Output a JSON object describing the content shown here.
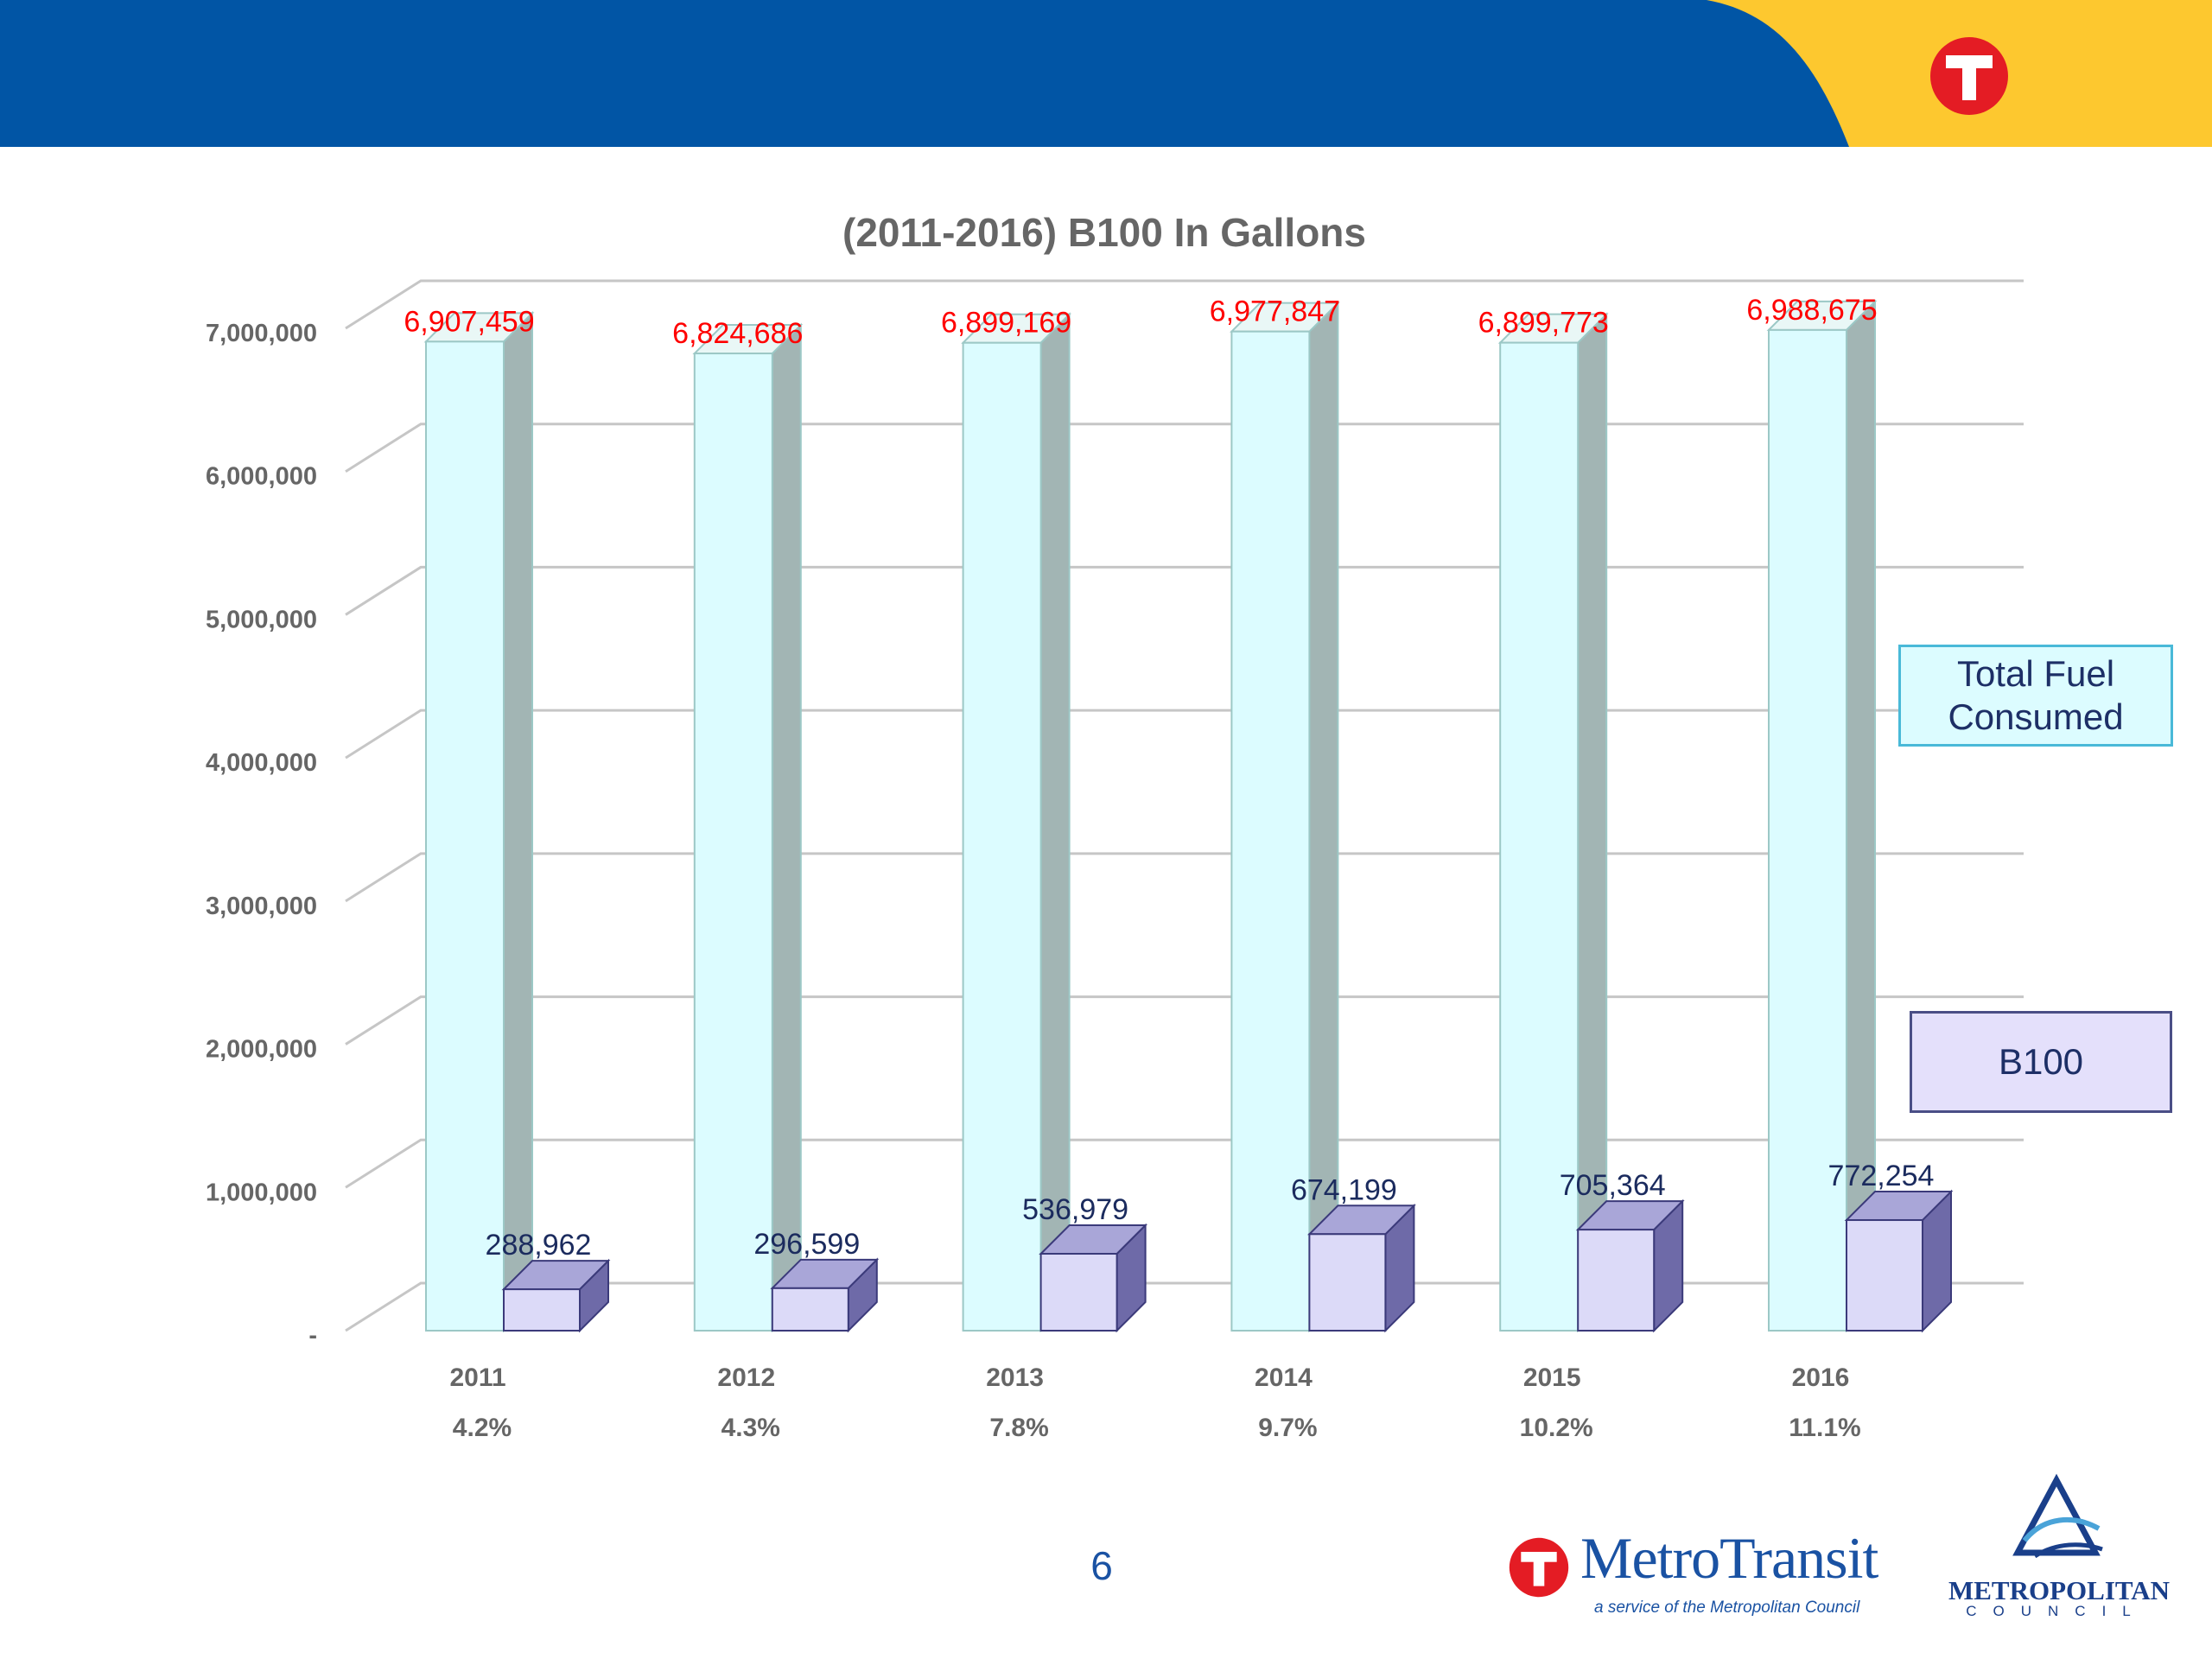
{
  "colors": {
    "header_blue": "#0155a5",
    "header_yellow": "#fdc82f",
    "logo_red": "#e41c24",
    "total_bar": "#dcfcff",
    "total_bar_side": "#a2b5b4",
    "b100_bar": "#dcdaf8",
    "b100_bar_side": "#6e6aa8",
    "b100_bar_edge": "#3b3a7a",
    "total_label": "#ff0000",
    "b100_label": "#1b2b5e",
    "axis_text": "#666666"
  },
  "header": {
    "logo_icon": "metro-transit-t-icon"
  },
  "chart_data": {
    "type": "bar",
    "title": "(2011-2016) B100 In Gallons",
    "categories": [
      "2011",
      "2012",
      "2013",
      "2014",
      "2015",
      "2016"
    ],
    "category_sublabels": [
      "4.2%",
      "4.3%",
      "7.8%",
      "9.7%",
      "10.2%",
      "11.1%"
    ],
    "series": [
      {
        "name": "Total Fuel Consumed",
        "values": [
          6907459,
          6824686,
          6899169,
          6977847,
          6899773,
          6988675
        ],
        "labels": [
          "6,907,459",
          "6,824,686",
          "6,899,169",
          "6,977,847",
          "6,899,773",
          "6,988,675"
        ]
      },
      {
        "name": "B100",
        "values": [
          288962,
          296599,
          536979,
          674199,
          705364,
          772254
        ],
        "labels": [
          "288,962",
          "296,599",
          "536,979",
          "674,199",
          "705,364",
          "772,254"
        ]
      }
    ],
    "ylim": [
      0,
      7000000
    ],
    "yticks": [
      0,
      1000000,
      2000000,
      3000000,
      4000000,
      5000000,
      6000000,
      7000000
    ],
    "ytick_labels": [
      "-",
      "1,000,000",
      "2,000,000",
      "3,000,000",
      "4,000,000",
      "5,000,000",
      "6,000,000",
      "7,000,000"
    ],
    "grid": true,
    "legend_placement": "right"
  },
  "legend": {
    "total_label": "Total Fuel Consumed",
    "b100_label": "B100"
  },
  "footer": {
    "page_number": "6",
    "metro_brand": "MetroTransit",
    "metro_tagline": "a service of the Metropolitan Council",
    "council_name": "METROPOLITAN",
    "council_sub": "COUNCIL"
  }
}
